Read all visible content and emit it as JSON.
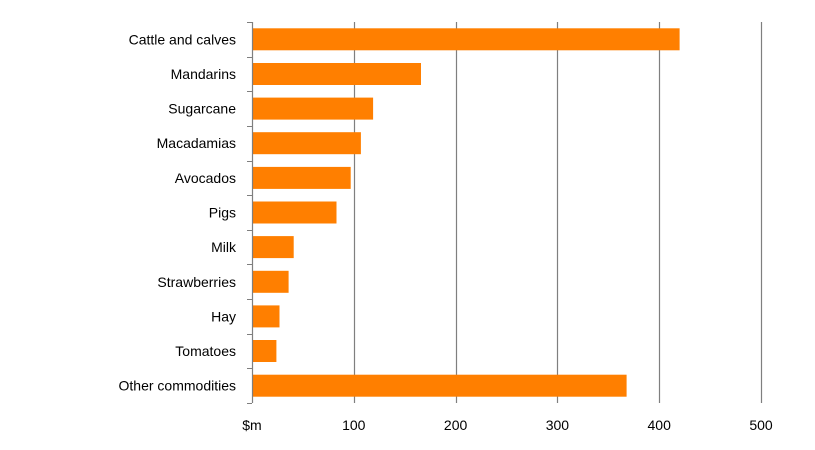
{
  "chart_data": {
    "type": "bar",
    "orientation": "horizontal",
    "categories": [
      "Cattle and calves",
      "Mandarins",
      "Sugarcane",
      "Macadamias",
      "Avocados",
      "Pigs",
      "Milk",
      "Strawberries",
      "Hay",
      "Tomatoes",
      "Other commodities"
    ],
    "values": [
      420,
      166,
      119,
      107,
      97,
      83,
      41,
      36,
      27,
      24,
      368
    ],
    "xlabel": "$m",
    "xlim": [
      0,
      500
    ],
    "x_ticks": [
      100,
      200,
      300,
      400,
      500
    ],
    "x_tick_labels": [
      "100",
      "200",
      "300",
      "400",
      "500"
    ],
    "grid": true,
    "bar_color": "#ff7f00",
    "grid_color": "#7f7f7f",
    "axis_color": "#7f7f7f"
  }
}
